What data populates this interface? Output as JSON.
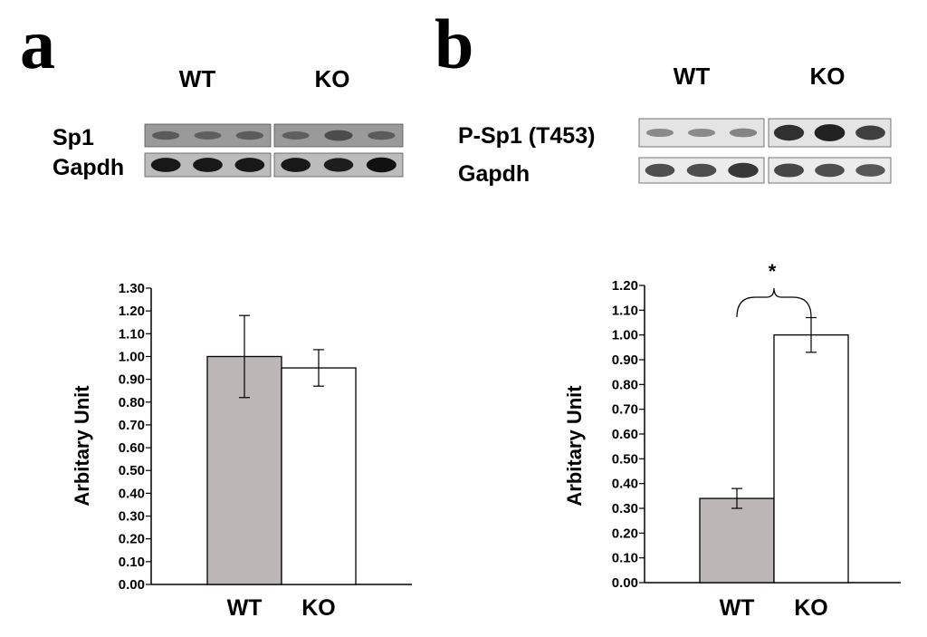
{
  "panels": [
    {
      "letter": "a",
      "blot": {
        "groups": [
          "WT",
          "KO"
        ],
        "rows": [
          {
            "label": "Sp1",
            "lanes": [
              0.45,
              0.4,
              0.45,
              0.4,
              0.65,
              0.45
            ],
            "background": "#9a9a9a",
            "band_color": "#303030"
          },
          {
            "label": "Gapdh",
            "lanes": [
              0.95,
              0.95,
              0.95,
              0.95,
              0.9,
              1.0
            ],
            "background": "#bcbcbc",
            "band_color": "#111111"
          }
        ]
      }
    },
    {
      "letter": "b",
      "blot": {
        "groups": [
          "WT",
          "KO"
        ],
        "rows": [
          {
            "label": "P-Sp1 (T453)",
            "lanes": [
              0.25,
              0.25,
              0.3,
              0.85,
              0.95,
              0.75
            ],
            "background": "#e4e4e4",
            "band_color": "#1a1a1a"
          },
          {
            "label": "Gapdh",
            "lanes": [
              0.75,
              0.75,
              0.9,
              0.8,
              0.75,
              0.7
            ],
            "background": "#ececec",
            "band_color": "#2a2a2a"
          }
        ]
      }
    }
  ],
  "chart_data": [
    {
      "type": "bar",
      "title": "",
      "categories": [
        "WT",
        "KO"
      ],
      "values": [
        1.0,
        0.95
      ],
      "errors": [
        0.18,
        0.08
      ],
      "colors": [
        "#bcb6b6",
        "#ffffff"
      ],
      "xlabel": "",
      "ylabel": "Arbitary Unit",
      "ylim": [
        0,
        1.3
      ],
      "yticks": [
        "0.00",
        "0.10",
        "0.20",
        "0.30",
        "0.40",
        "0.50",
        "0.60",
        "0.70",
        "0.80",
        "0.90",
        "1.00",
        "1.10",
        "1.20",
        "1.30"
      ],
      "grid": false,
      "annotation": ""
    },
    {
      "type": "bar",
      "title": "",
      "categories": [
        "WT",
        "KO"
      ],
      "values": [
        0.34,
        1.0
      ],
      "errors": [
        0.04,
        0.07
      ],
      "colors": [
        "#bcb6b6",
        "#ffffff"
      ],
      "xlabel": "",
      "ylabel": "Arbitary Unit",
      "ylim": [
        0,
        1.2
      ],
      "yticks": [
        "0.00",
        "0.10",
        "0.20",
        "0.30",
        "0.40",
        "0.50",
        "0.60",
        "0.70",
        "0.80",
        "0.90",
        "1.00",
        "1.10",
        "1.20"
      ],
      "grid": false,
      "annotation": "*"
    }
  ]
}
